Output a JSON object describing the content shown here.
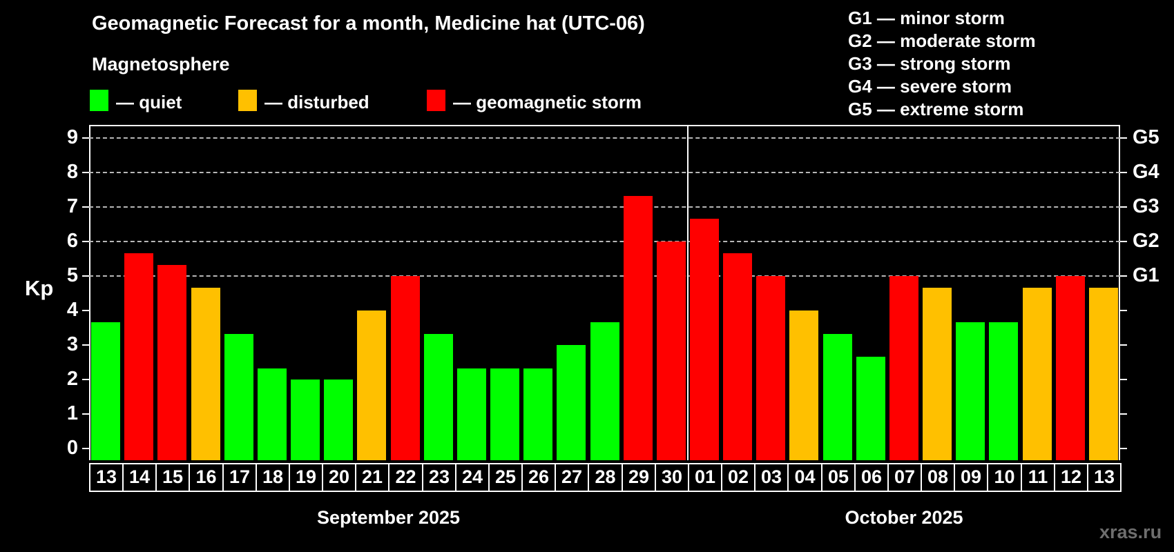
{
  "title": "Geomagnetic Forecast for a month, Medicine hat (UTC-06)",
  "subtitle": "Magnetosphere",
  "legend": {
    "items": [
      {
        "key": "quiet",
        "label": "— quiet",
        "color": "#00ff00"
      },
      {
        "key": "disturbed",
        "label": "— disturbed",
        "color": "#ffc000"
      },
      {
        "key": "storm",
        "label": "— geomagnetic storm",
        "color": "#ff0000"
      }
    ]
  },
  "g_legend": [
    "G1 — minor storm",
    "G2 — moderate storm",
    "G3 — strong storm",
    "G4 — severe storm",
    "G5 — extreme storm"
  ],
  "axes": {
    "y_label": "Kp",
    "y_ticks": [
      0,
      1,
      2,
      3,
      4,
      5,
      6,
      7,
      8,
      9
    ],
    "right_labels": [
      "G1",
      "G2",
      "G3",
      "G4",
      "G5"
    ]
  },
  "watermark": "xras.ru",
  "chart_data": {
    "type": "bar",
    "title": "Geomagnetic Forecast for a month, Medicine hat (UTC-06)",
    "xlabel": "",
    "ylabel": "Kp",
    "ylim": [
      0,
      9
    ],
    "grid": "dashed horizontal at storm levels only",
    "gridlines_at": [
      5,
      6,
      7,
      8,
      9
    ],
    "right_axis_labels": {
      "5": "G1",
      "6": "G2",
      "7": "G3",
      "8": "G4",
      "9": "G5"
    },
    "status_colors": {
      "quiet": "#00ff00",
      "disturbed": "#ffc000",
      "storm": "#ff0000"
    },
    "months": [
      {
        "label": "September 2025",
        "days": [
          "13",
          "14",
          "15",
          "16",
          "17",
          "18",
          "19",
          "20",
          "21",
          "22",
          "23",
          "24",
          "25",
          "26",
          "27",
          "28",
          "29",
          "30"
        ],
        "values": [
          3.67,
          5.67,
          5.33,
          4.67,
          3.33,
          2.33,
          2.0,
          2.0,
          4.0,
          5.0,
          3.33,
          2.33,
          2.33,
          2.33,
          3.0,
          3.67,
          7.33,
          6.0
        ],
        "status": [
          "quiet",
          "storm",
          "storm",
          "disturbed",
          "quiet",
          "quiet",
          "quiet",
          "quiet",
          "disturbed",
          "storm",
          "quiet",
          "quiet",
          "quiet",
          "quiet",
          "quiet",
          "quiet",
          "storm",
          "storm"
        ]
      },
      {
        "label": "October 2025",
        "days": [
          "01",
          "02",
          "03",
          "04",
          "05",
          "06",
          "07",
          "08",
          "09",
          "10",
          "11",
          "12",
          "13"
        ],
        "values": [
          6.67,
          5.67,
          5.0,
          4.0,
          3.33,
          2.67,
          5.0,
          4.67,
          3.67,
          3.67,
          4.67,
          5.0,
          4.67
        ],
        "status": [
          "storm",
          "storm",
          "storm",
          "disturbed",
          "quiet",
          "quiet",
          "storm",
          "disturbed",
          "quiet",
          "quiet",
          "disturbed",
          "storm",
          "disturbed"
        ]
      }
    ]
  }
}
